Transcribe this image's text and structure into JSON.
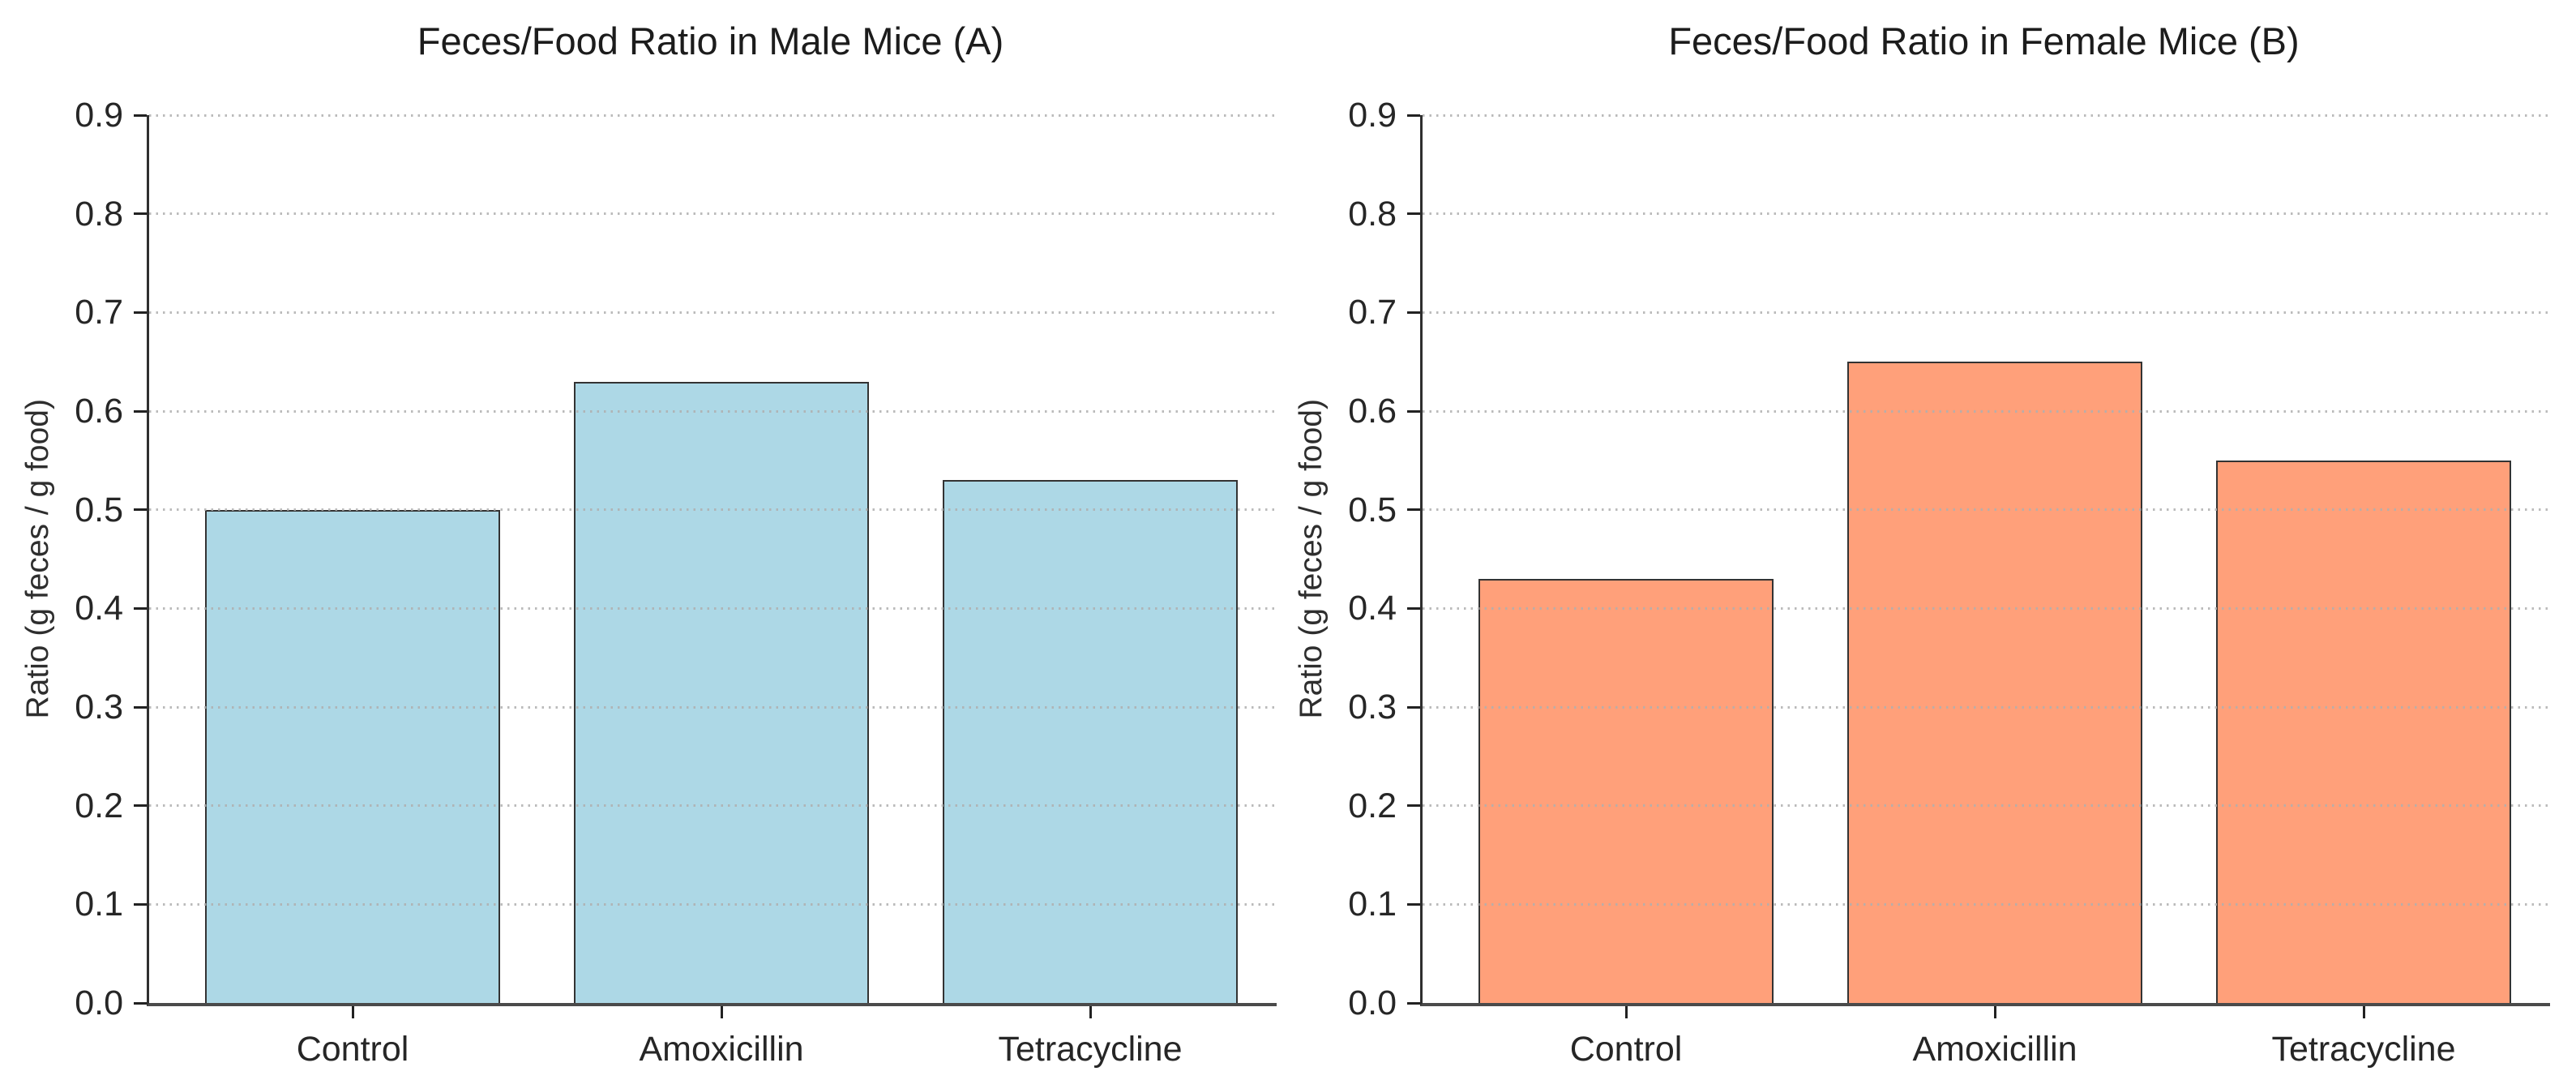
{
  "chart_data": [
    {
      "type": "bar",
      "title": "Feces/Food Ratio in Male Mice (A)",
      "ylabel": "Ratio (g feces / g food)",
      "xlabel": "",
      "categories": [
        "Control",
        "Amoxicillin",
        "Tetracycline"
      ],
      "values": [
        0.5,
        0.63,
        0.53
      ],
      "bar_color": "#ADD8E6",
      "bar_edge_color": "#333333",
      "ylim": [
        0.0,
        0.9
      ],
      "ytick_step": 0.1,
      "ytick_decimals": 1,
      "grid": "dotted-horizontal",
      "legend": "none"
    },
    {
      "type": "bar",
      "title": "Feces/Food Ratio in Female Mice (B)",
      "ylabel": "Ratio (g feces / g food)",
      "xlabel": "",
      "categories": [
        "Control",
        "Amoxicillin",
        "Tetracycline"
      ],
      "values": [
        0.43,
        0.65,
        0.55
      ],
      "bar_color": "#FFA07A",
      "bar_edge_color": "#333333",
      "ylim": [
        0.0,
        0.9
      ],
      "ytick_step": 0.1,
      "ytick_decimals": 1,
      "grid": "dotted-horizontal",
      "legend": "none"
    }
  ]
}
